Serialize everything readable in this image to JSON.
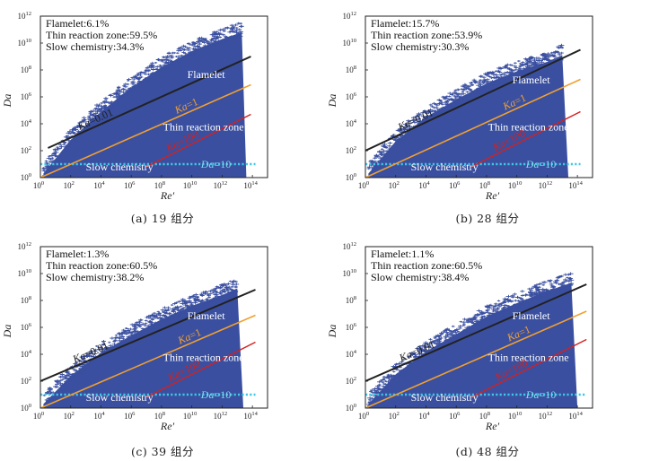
{
  "axis": {
    "xlabel": "Re′",
    "ylabel": "Da",
    "xlim": [
      0,
      15
    ],
    "ylim": [
      0,
      12
    ],
    "xticks": [
      0,
      2,
      4,
      6,
      8,
      10,
      12,
      14
    ],
    "yticks": [
      0,
      2,
      4,
      6,
      8,
      10,
      12
    ],
    "tick_base": "10"
  },
  "colors": {
    "scatter": "#3a4fa0",
    "ka001": "#222222",
    "ka1": "#f0a030",
    "ka100": "#d42020",
    "da10": "#3fc6e6",
    "region_text": "#ffffff",
    "da10_text": "#7fdcf0"
  },
  "labels": {
    "flamelet": "Flamelet",
    "thin": "Thin reaction zone",
    "slow": "Slow chemistry",
    "ka001_prefix": "Ka",
    "ka001_value": "=0.01",
    "ka1_prefix": "Ka",
    "ka1_value": "=1",
    "ka100_prefix": "Ka",
    "ka100_value": "=100",
    "da10_prefix": "Da",
    "da10_value": "=10"
  },
  "chart_data": [
    {
      "type": "scatter",
      "caption": "(a) 19 组分",
      "stats": [
        "Flamelet:6.1%",
        "Thin reaction zone:59.5%",
        "Slow chemistry:34.3%"
      ],
      "envelope": {
        "x": [
          0.2,
          2,
          4,
          6,
          8,
          10,
          12,
          13.3,
          13.6
        ],
        "y": [
          0.3,
          2.8,
          4.9,
          6.7,
          8.2,
          9.4,
          10.3,
          10.8,
          0
        ]
      },
      "lines": {
        "ka001": [
          [
            0.5,
            2.2
          ],
          [
            13.9,
            9.0
          ]
        ],
        "ka1": [
          [
            0,
            0
          ],
          [
            13.9,
            6.9
          ]
        ],
        "ka100": [
          [
            7,
            0.8
          ],
          [
            13.9,
            4.7
          ]
        ],
        "da10": [
          [
            0,
            1
          ],
          [
            14.2,
            1
          ]
        ]
      }
    },
    {
      "type": "scatter",
      "caption": "(b) 28 组分",
      "stats": [
        "Flamelet:15.7%",
        "Thin reaction zone:53.9%",
        "Slow chemistry:30.3%"
      ],
      "envelope": {
        "x": [
          0.2,
          2,
          4,
          6,
          8,
          10,
          12,
          13.0,
          13.4
        ],
        "y": [
          0.3,
          2.7,
          4.5,
          5.8,
          7.0,
          7.9,
          8.6,
          9.1,
          0
        ]
      },
      "lines": {
        "ka001": [
          [
            0,
            2.0
          ],
          [
            14.2,
            9.5
          ]
        ],
        "ka1": [
          [
            0,
            0
          ],
          [
            14.2,
            7.3
          ]
        ],
        "ka100": [
          [
            7,
            0.8
          ],
          [
            14.2,
            4.9
          ]
        ],
        "da10": [
          [
            0,
            1
          ],
          [
            14.2,
            1
          ]
        ]
      }
    },
    {
      "type": "scatter",
      "caption": "(c) 39 组分",
      "stats": [
        "Flamelet:1.3%",
        "Thin reaction zone:60.5%",
        "Slow chemistry:38.2%"
      ],
      "envelope": {
        "x": [
          0.2,
          2,
          4,
          6,
          8,
          10,
          12,
          13.0,
          13.4
        ],
        "y": [
          0.3,
          2.4,
          4.1,
          5.4,
          6.6,
          7.6,
          8.4,
          8.9,
          0
        ]
      },
      "lines": {
        "ka001": [
          [
            0,
            2.0
          ],
          [
            14.2,
            8.8
          ]
        ],
        "ka1": [
          [
            0,
            0
          ],
          [
            14.2,
            6.9
          ]
        ],
        "ka100": [
          [
            7,
            0.8
          ],
          [
            14.2,
            4.9
          ]
        ],
        "da10": [
          [
            0,
            1
          ],
          [
            14.2,
            1
          ]
        ]
      }
    },
    {
      "type": "scatter",
      "caption": "(d) 48 组分",
      "stats": [
        "Flamelet:1.1%",
        "Thin reaction zone:60.5%",
        "Slow chemistry:38.4%"
      ],
      "envelope": {
        "x": [
          0.2,
          2,
          4,
          6,
          8,
          10,
          12,
          13.6,
          14.0
        ],
        "y": [
          0.3,
          2.5,
          4.2,
          5.5,
          6.8,
          7.8,
          8.7,
          9.3,
          0
        ]
      },
      "lines": {
        "ka001": [
          [
            0,
            2.0
          ],
          [
            14.6,
            9.2
          ]
        ],
        "ka1": [
          [
            0,
            0
          ],
          [
            14.6,
            7.2
          ]
        ],
        "ka100": [
          [
            7,
            0.8
          ],
          [
            14.6,
            5.1
          ]
        ],
        "da10": [
          [
            0,
            1
          ],
          [
            14.6,
            1
          ]
        ]
      }
    }
  ]
}
